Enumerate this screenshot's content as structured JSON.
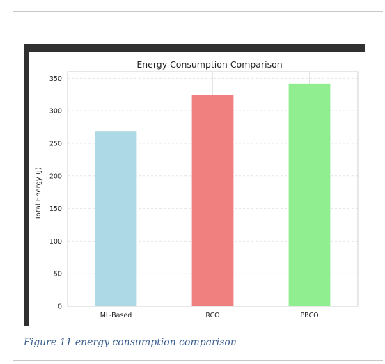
{
  "figure_caption": "Figure 11 energy consumption comparison",
  "colors": {
    "bars": [
      "#add8e6",
      "#f08080",
      "#90ee90"
    ],
    "screenshot_border": "#303030",
    "caption": "#3a5d8f"
  },
  "chart_data": {
    "type": "bar",
    "title": "Energy Consumption Comparison",
    "xlabel": "",
    "ylabel": "Total Energy (J)",
    "categories": [
      "ML-Based",
      "RCO",
      "PBCO"
    ],
    "values": [
      269,
      324,
      342
    ],
    "ylim": [
      0,
      360
    ],
    "yticks": [
      0,
      50,
      100,
      150,
      200,
      250,
      300,
      350
    ],
    "grid": true,
    "legend": "none"
  }
}
